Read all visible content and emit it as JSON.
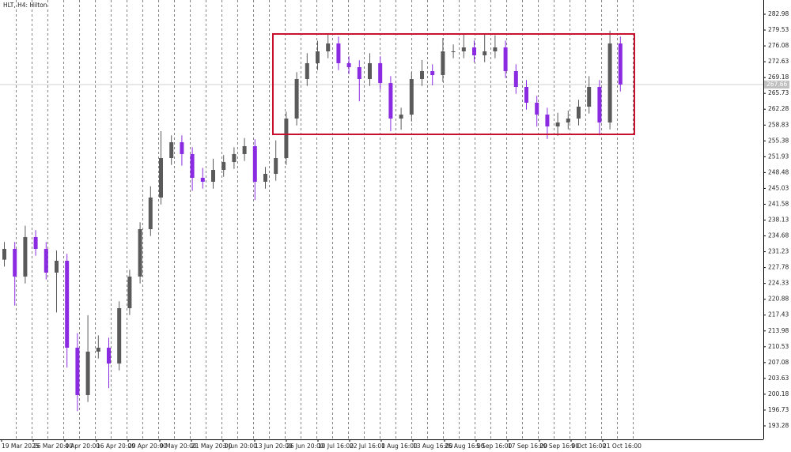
{
  "chart_data": {
    "type": "candlestick",
    "title": "HLT, H4: Hilton",
    "x_labels": [
      "19 Mar 2025",
      "26 Mar 20:00",
      "4 Apr 20:00",
      "16 Apr 20:00",
      "29 Apr 20:00",
      "9 May 20:00",
      "21 May 20:00",
      "3 Jun 20:00",
      "13 Jun 20:00",
      "26 Jun 20:00",
      "10 Jul 16:00",
      "22 Jul 16:00",
      "1 Aug 16:00",
      "13 Aug 16:00",
      "25 Aug 16:00",
      "5 Sep 16:00",
      "17 Sep 16:00",
      "29 Sep 16:00",
      "9 Oct 16:00",
      "21 Oct 16:00"
    ],
    "open": [
      229.5,
      231.85,
      225.82,
      234.43,
      231.85,
      226.68,
      229.26,
      210.32,
      199.99,
      209.46,
      210.32,
      206.88,
      218.93,
      225.82,
      236.15,
      243.04,
      251.64,
      255.09,
      252.51,
      247.34,
      246.48,
      249.06,
      250.78,
      252.51,
      254.23,
      246.48,
      248.2,
      251.64,
      260.25,
      268.86,
      272.31,
      274.89,
      276.61,
      272.31,
      271.45,
      268.86,
      272.31,
      267.99,
      260.25,
      261.11,
      268.86,
      270.58,
      269.72,
      274.89,
      274.89,
      275.75,
      274.03,
      274.89,
      275.75,
      270.58,
      267.14,
      263.7,
      261.11,
      258.53,
      259.39,
      260.25,
      262.84,
      267.14,
      259.39,
      276.61
    ],
    "high": [
      233.35,
      233.35,
      236.9,
      235.93,
      233.35,
      231.5,
      230.76,
      213.5,
      217.4,
      213.0,
      212.5,
      220.43,
      227.32,
      237.65,
      245.5,
      257.5,
      256.59,
      256.59,
      254.01,
      249.5,
      251.5,
      252.28,
      254.01,
      256.0,
      255.73,
      249.7,
      255.5,
      261.75,
      270.36,
      274.5,
      277.2,
      278.5,
      278.11,
      273.81,
      272.95,
      274.5,
      273.81,
      269.49,
      262.61,
      270.36,
      273.0,
      272.08,
      277.8,
      276.39,
      278.7,
      277.25,
      278.6,
      278.4,
      277.25,
      272.08,
      268.64,
      265.2,
      262.61,
      261.5,
      262.0,
      264.34,
      269.5,
      268.64,
      279.4,
      278.11
    ],
    "low": [
      228.0,
      219.5,
      224.32,
      230.35,
      225.18,
      218.0,
      206.0,
      196.5,
      198.49,
      207.96,
      201.5,
      205.38,
      217.43,
      224.32,
      234.65,
      241.54,
      250.14,
      250.0,
      244.5,
      244.98,
      244.98,
      247.56,
      249.28,
      251.01,
      242.5,
      244.98,
      246.7,
      250.14,
      258.75,
      267.36,
      270.81,
      273.39,
      270.81,
      269.95,
      264.0,
      267.36,
      266.49,
      257.5,
      257.8,
      259.61,
      267.36,
      267.5,
      268.22,
      273.39,
      273.39,
      272.53,
      272.53,
      273.39,
      269.08,
      265.64,
      262.2,
      258.5,
      255.8,
      256.5,
      257.89,
      258.75,
      261.34,
      256.6,
      257.89,
      266.16
    ],
    "close": [
      231.85,
      225.82,
      234.43,
      231.85,
      226.68,
      229.26,
      210.32,
      199.99,
      209.46,
      210.32,
      206.88,
      218.93,
      225.82,
      236.15,
      243.04,
      251.64,
      255.09,
      252.51,
      247.34,
      246.48,
      249.06,
      250.78,
      252.51,
      254.23,
      246.48,
      248.2,
      251.64,
      260.25,
      268.86,
      272.31,
      274.89,
      276.61,
      272.31,
      271.45,
      268.86,
      272.31,
      267.99,
      260.25,
      261.11,
      268.86,
      270.58,
      269.72,
      274.89,
      274.89,
      275.75,
      274.03,
      274.89,
      275.75,
      270.58,
      267.14,
      263.7,
      261.11,
      258.53,
      259.39,
      260.25,
      262.84,
      267.14,
      259.39,
      276.61,
      267.66
    ],
    "up_color": "#5a5a5a",
    "down_color": "#8a2be2",
    "current_price": 267.66,
    "zone": {
      "top": 278.68,
      "bottom": 256.81,
      "color": "#c8102e"
    },
    "ylim": [
      190.35,
      286.08
    ],
    "yticks": [
      282.98,
      279.53,
      276.08,
      272.63,
      269.18,
      265.73,
      262.28,
      258.83,
      255.38,
      251.93,
      248.48,
      245.03,
      241.58,
      238.13,
      234.68,
      231.23,
      227.78,
      224.33,
      220.88,
      217.43,
      213.98,
      210.53,
      207.08,
      203.63,
      200.18,
      196.73,
      193.28
    ]
  }
}
